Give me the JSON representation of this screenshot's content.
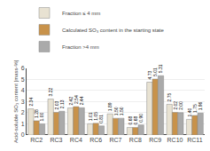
{
  "chart_data": {
    "type": "bar",
    "categories": [
      "RC2",
      "RC3",
      "RC4",
      "RC6",
      "RC7",
      "RC8",
      "RC9",
      "RC10",
      "RC11"
    ],
    "series": [
      {
        "name": "Fraction ≤ 4 mm",
        "color": "#e8e2d2",
        "values": [
          2.34,
          3.22,
          2.42,
          1.01,
          1.89,
          0.68,
          4.73,
          2.75,
          1.4
        ],
        "value_labels": [
          "2.34",
          "3.22",
          "2.42",
          "1.01",
          "1.89",
          "0.68",
          "4.73",
          "2.75",
          "1.40"
        ]
      },
      {
        "name": "Calculated SO₃ content in the starting state",
        "color": "#c8924a",
        "values": [
          1.28,
          2.03,
          2.54,
          1.05,
          1.5,
          0.68,
          5.01,
          2.02,
          1.75
        ],
        "value_labels": [
          "1.28",
          "2.03",
          "2.54",
          "1.05",
          "1.50",
          "0.68",
          "5.01",
          "2.02",
          "1.75"
        ]
      },
      {
        "name": "Fraction >4 mm",
        "color": "#aaaaaa",
        "values": [
          1.0,
          2.13,
          2.44,
          0.81,
          1.5,
          0.9,
          5.31,
          2.0,
          1.96
        ],
        "value_labels": [
          "1.00",
          "2.13",
          "2.44",
          "0.81",
          "1.50",
          "0.90",
          "5.31",
          "2.00",
          "1.96"
        ]
      }
    ],
    "ylabel": "Acid-soluble SO₃ content [mass-%]",
    "ylim": [
      0,
      6
    ],
    "yticks": [
      0,
      1,
      2,
      3,
      4,
      5,
      6
    ],
    "grid": true,
    "legend": "upper left",
    "data_labels": true
  }
}
